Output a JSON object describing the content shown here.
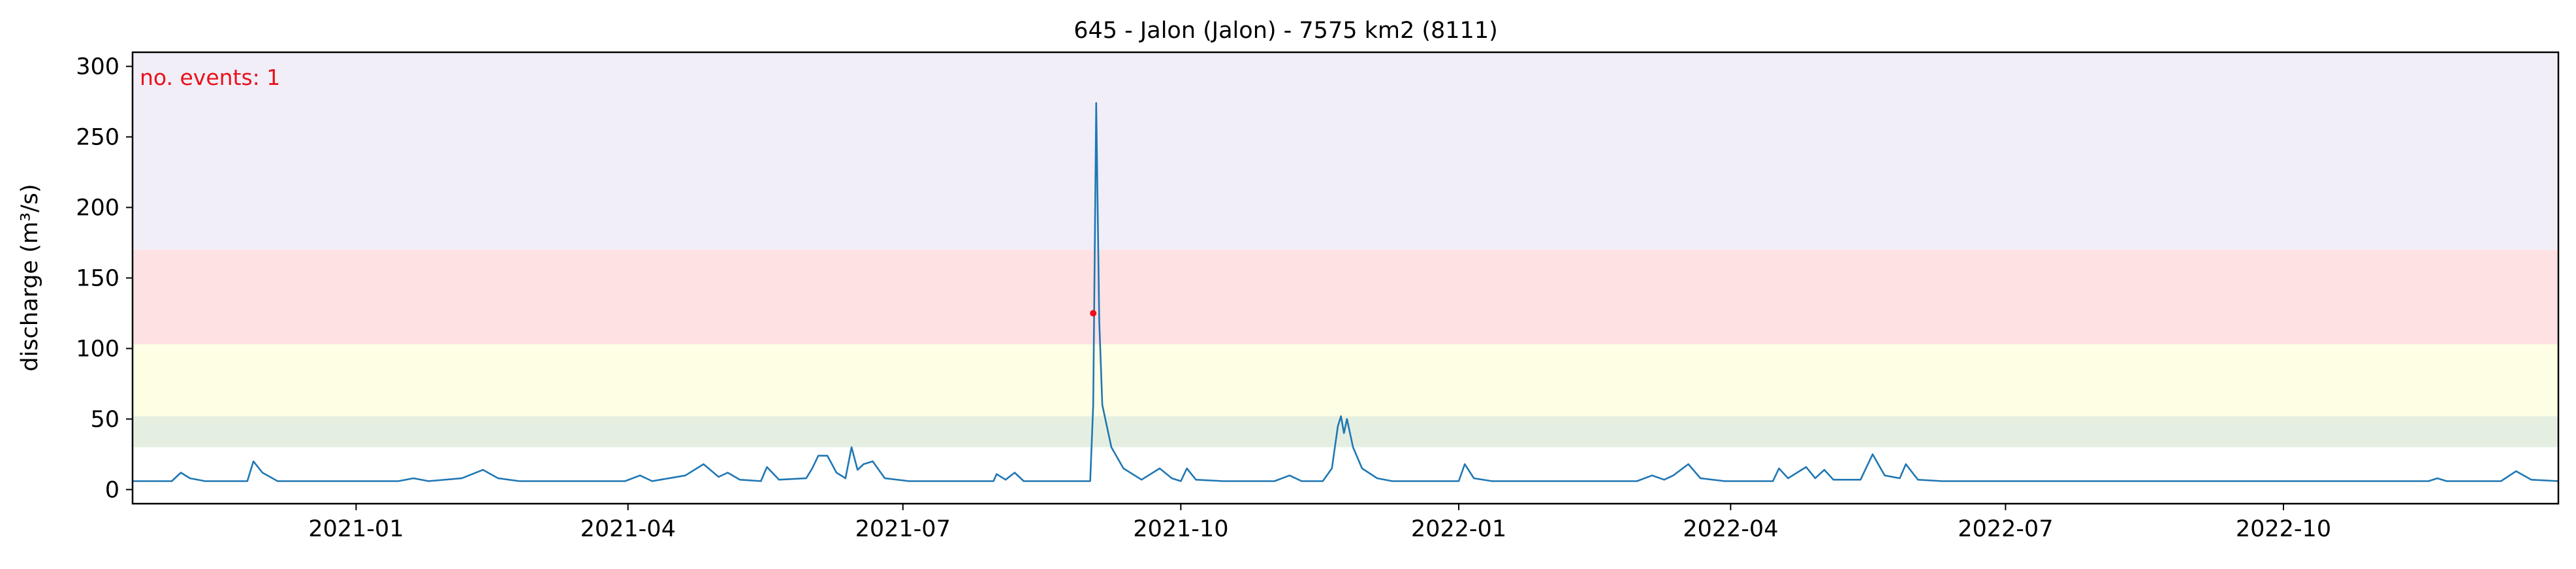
{
  "chart_data": {
    "type": "line",
    "title": "645 - Jalon (Jalon) - 7575 km2 (8111)",
    "xlabel": "",
    "ylabel": "discharge (m³/s)",
    "xlim": [
      "2020-10-19",
      "2022-12-31"
    ],
    "ylim": [
      -10,
      310
    ],
    "x_ticks": [
      "2021-01",
      "2021-04",
      "2021-07",
      "2021-10",
      "2022-01",
      "2022-04",
      "2022-07",
      "2022-10"
    ],
    "y_ticks": [
      0,
      50,
      100,
      150,
      200,
      250,
      300
    ],
    "grid": false,
    "legend": "none",
    "threshold_bands": [
      {
        "from": 30,
        "to": 52,
        "color": "#e5efe1"
      },
      {
        "from": 52,
        "to": 103,
        "color": "#fefee4"
      },
      {
        "from": 103,
        "to": 170,
        "color": "#fee1e3"
      },
      {
        "from": 170,
        "to": 310,
        "color": "#f1eef8"
      }
    ],
    "series": [
      {
        "color": "#1f77b4",
        "points": [
          [
            "2020-10-19",
            6
          ],
          [
            "2020-11-01",
            6
          ],
          [
            "2020-11-04",
            12
          ],
          [
            "2020-11-07",
            8
          ],
          [
            "2020-11-12",
            6
          ],
          [
            "2020-11-26",
            6
          ],
          [
            "2020-11-28",
            20
          ],
          [
            "2020-12-01",
            12
          ],
          [
            "2020-12-06",
            6
          ],
          [
            "2021-01-15",
            6
          ],
          [
            "2021-01-20",
            8
          ],
          [
            "2021-01-25",
            6
          ],
          [
            "2021-02-05",
            8
          ],
          [
            "2021-02-12",
            14
          ],
          [
            "2021-02-17",
            8
          ],
          [
            "2021-02-24",
            6
          ],
          [
            "2021-03-31",
            6
          ],
          [
            "2021-04-05",
            10
          ],
          [
            "2021-04-09",
            6
          ],
          [
            "2021-04-20",
            10
          ],
          [
            "2021-04-26",
            18
          ],
          [
            "2021-05-01",
            9
          ],
          [
            "2021-05-04",
            12
          ],
          [
            "2021-05-08",
            7
          ],
          [
            "2021-05-15",
            6
          ],
          [
            "2021-05-17",
            16
          ],
          [
            "2021-05-21",
            7
          ],
          [
            "2021-05-30",
            8
          ],
          [
            "2021-06-01",
            15
          ],
          [
            "2021-06-03",
            24
          ],
          [
            "2021-06-06",
            24
          ],
          [
            "2021-06-09",
            12
          ],
          [
            "2021-06-12",
            8
          ],
          [
            "2021-06-14",
            30
          ],
          [
            "2021-06-16",
            14
          ],
          [
            "2021-06-18",
            18
          ],
          [
            "2021-06-21",
            20
          ],
          [
            "2021-06-25",
            8
          ],
          [
            "2021-07-03",
            6
          ],
          [
            "2021-07-31",
            6
          ],
          [
            "2021-08-01",
            11
          ],
          [
            "2021-08-04",
            7
          ],
          [
            "2021-08-07",
            12
          ],
          [
            "2021-08-10",
            6
          ],
          [
            "2021-09-01",
            6
          ],
          [
            "2021-09-02",
            60
          ],
          [
            "2021-09-03",
            274
          ],
          [
            "2021-09-04",
            120
          ],
          [
            "2021-09-05",
            60
          ],
          [
            "2021-09-08",
            30
          ],
          [
            "2021-09-12",
            15
          ],
          [
            "2021-09-18",
            7
          ],
          [
            "2021-09-24",
            15
          ],
          [
            "2021-09-28",
            8
          ],
          [
            "2021-10-01",
            6
          ],
          [
            "2021-10-03",
            15
          ],
          [
            "2021-10-06",
            7
          ],
          [
            "2021-10-15",
            6
          ],
          [
            "2021-11-01",
            6
          ],
          [
            "2021-11-06",
            10
          ],
          [
            "2021-11-10",
            6
          ],
          [
            "2021-11-17",
            6
          ],
          [
            "2021-11-20",
            15
          ],
          [
            "2021-11-22",
            45
          ],
          [
            "2021-11-23",
            52
          ],
          [
            "2021-11-24",
            40
          ],
          [
            "2021-11-25",
            50
          ],
          [
            "2021-11-27",
            30
          ],
          [
            "2021-11-30",
            15
          ],
          [
            "2021-12-05",
            8
          ],
          [
            "2021-12-10",
            6
          ],
          [
            "2022-01-01",
            6
          ],
          [
            "2022-01-03",
            18
          ],
          [
            "2022-01-06",
            8
          ],
          [
            "2022-01-12",
            6
          ],
          [
            "2022-03-01",
            6
          ],
          [
            "2022-03-06",
            10
          ],
          [
            "2022-03-10",
            7
          ],
          [
            "2022-03-13",
            10
          ],
          [
            "2022-03-18",
            18
          ],
          [
            "2022-03-22",
            8
          ],
          [
            "2022-03-30",
            6
          ],
          [
            "2022-04-15",
            6
          ],
          [
            "2022-04-17",
            15
          ],
          [
            "2022-04-20",
            8
          ],
          [
            "2022-04-23",
            12
          ],
          [
            "2022-04-26",
            16
          ],
          [
            "2022-04-29",
            8
          ],
          [
            "2022-05-02",
            14
          ],
          [
            "2022-05-05",
            7
          ],
          [
            "2022-05-14",
            7
          ],
          [
            "2022-05-18",
            25
          ],
          [
            "2022-05-22",
            10
          ],
          [
            "2022-05-27",
            8
          ],
          [
            "2022-05-29",
            18
          ],
          [
            "2022-06-02",
            7
          ],
          [
            "2022-06-10",
            6
          ],
          [
            "2022-11-18",
            6
          ],
          [
            "2022-11-21",
            8
          ],
          [
            "2022-11-24",
            6
          ],
          [
            "2022-12-12",
            6
          ],
          [
            "2022-12-17",
            13
          ],
          [
            "2022-12-22",
            7
          ],
          [
            "2022-12-31",
            6
          ]
        ]
      }
    ],
    "events": [
      {
        "x": "2021-09-02",
        "y": 125,
        "color": "#e8111a"
      }
    ],
    "annotation": "no. events: 1"
  }
}
